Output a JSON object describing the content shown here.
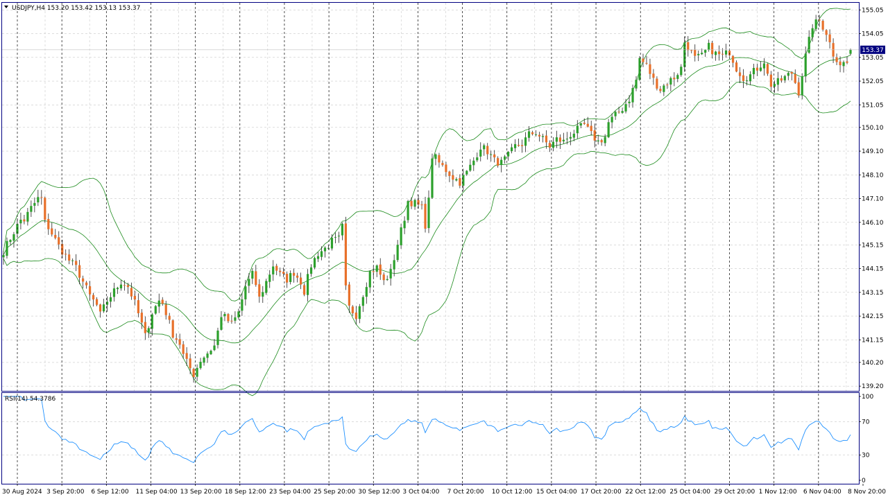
{
  "header": {
    "symbol_line": "USDJPY,H4  153.20 153.42 153.13 153.37",
    "dropdown_icon": "triangle-down-icon"
  },
  "price_tag": "153.37",
  "rsi_label": "RSI(14) 54.3786",
  "colors": {
    "background": "#ffffff",
    "frame": "#000080",
    "grid": "#c8c8c8",
    "bull": "#2ca02c",
    "bear": "#e8702a",
    "bollinger": "#1a8a1a",
    "rsi_line": "#1e90ff",
    "period_sep": "#000000",
    "price_tag_bg": "#000080",
    "price_tag_text": "#ffffff"
  },
  "chart_data": [
    {
      "type": "candlestick",
      "title": "USDJPY,H4",
      "last": {
        "open": 153.2,
        "high": 153.42,
        "low": 153.13,
        "close": 153.37
      },
      "ylim": [
        139.0,
        155.35
      ],
      "y_ticks": [
        "155.05",
        "154.05",
        "153.05",
        "152.05",
        "151.05",
        "150.10",
        "149.10",
        "148.10",
        "147.10",
        "146.10",
        "145.15",
        "144.15",
        "143.15",
        "142.15",
        "141.15",
        "140.20",
        "139.20"
      ],
      "x_ticks": [
        "30 Aug 2024",
        "3 Sep 20:00",
        "6 Sep 12:00",
        "11 Sep 04:00",
        "13 Sep 20:00",
        "18 Sep 12:00",
        "23 Sep 04:00",
        "25 Sep 20:00",
        "30 Sep 12:00",
        "3 Oct 04:00",
        "7 Oct 20:00",
        "10 Oct 12:00",
        "15 Oct 04:00",
        "17 Oct 20:00",
        "22 Oct 12:00",
        "25 Oct 04:00",
        "29 Oct 20:00",
        "1 Nov 12:00",
        "6 Nov 04:00",
        "8 Nov 20:00"
      ],
      "close_path": [
        [
          0,
          144.9
        ],
        [
          3,
          145.7
        ],
        [
          5,
          146.2
        ],
        [
          6,
          146.2
        ],
        [
          8,
          146.7
        ],
        [
          10,
          147.1
        ],
        [
          11,
          147.1
        ],
        [
          12,
          146.1
        ],
        [
          13,
          145.9
        ],
        [
          16,
          145.1
        ],
        [
          19,
          144.5
        ],
        [
          21,
          144.2
        ],
        [
          23,
          143.6
        ],
        [
          25,
          143.0
        ],
        [
          27,
          142.6
        ],
        [
          28,
          142.2
        ],
        [
          30,
          142.8
        ],
        [
          32,
          143.2
        ],
        [
          34,
          143.6
        ],
        [
          36,
          143.4
        ],
        [
          38,
          142.7
        ],
        [
          40,
          141.8
        ],
        [
          41,
          141.3
        ],
        [
          43,
          142.3
        ],
        [
          45,
          142.8
        ],
        [
          46,
          142.7
        ],
        [
          47,
          142.3
        ],
        [
          49,
          141.4
        ],
        [
          51,
          141.0
        ],
        [
          52,
          140.5
        ],
        [
          53,
          140.2
        ],
        [
          55,
          139.7
        ],
        [
          57,
          140.3
        ],
        [
          59,
          140.6
        ],
        [
          61,
          140.9
        ],
        [
          62,
          141.5
        ],
        [
          63,
          142.2
        ],
        [
          64,
          142.1
        ],
        [
          66,
          141.8
        ],
        [
          68,
          142.3
        ],
        [
          70,
          143.4
        ],
        [
          72,
          143.9
        ],
        [
          73,
          143.5
        ],
        [
          74,
          142.9
        ],
        [
          76,
          143.6
        ],
        [
          78,
          144.3
        ],
        [
          80,
          143.9
        ],
        [
          82,
          143.7
        ],
        [
          84,
          144.0
        ],
        [
          86,
          143.6
        ],
        [
          87,
          143.2
        ],
        [
          89,
          144.3
        ],
        [
          91,
          144.8
        ],
        [
          93,
          145.0
        ],
        [
          95,
          145.3
        ],
        [
          97,
          145.4
        ],
        [
          98,
          145.9
        ],
        [
          99,
          143.3
        ],
        [
          100,
          142.5
        ],
        [
          102,
          142.2
        ],
        [
          104,
          143.1
        ],
        [
          106,
          144.0
        ],
        [
          108,
          144.2
        ],
        [
          110,
          143.6
        ],
        [
          112,
          144.0
        ],
        [
          114,
          145.2
        ],
        [
          116,
          146.3
        ],
        [
          117,
          147.0
        ],
        [
          119,
          146.9
        ],
        [
          121,
          146.7
        ],
        [
          122,
          146.0
        ],
        [
          123,
          147.0
        ],
        [
          124,
          148.9
        ],
        [
          125,
          148.8
        ],
        [
          126,
          148.6
        ],
        [
          128,
          148.3
        ],
        [
          130,
          148.0
        ],
        [
          132,
          147.8
        ],
        [
          134,
          148.2
        ],
        [
          136,
          148.7
        ],
        [
          138,
          149.3
        ],
        [
          140,
          149.1
        ],
        [
          142,
          148.7
        ],
        [
          144,
          148.6
        ],
        [
          146,
          148.9
        ],
        [
          148,
          149.3
        ],
        [
          150,
          149.4
        ],
        [
          152,
          149.8
        ],
        [
          154,
          149.9
        ],
        [
          156,
          149.6
        ],
        [
          158,
          149.3
        ],
        [
          160,
          149.6
        ],
        [
          162,
          149.5
        ],
        [
          164,
          149.8
        ],
        [
          166,
          150.0
        ],
        [
          168,
          150.2
        ],
        [
          170,
          149.8
        ],
        [
          172,
          149.5
        ],
        [
          174,
          149.7
        ],
        [
          175,
          150.3
        ],
        [
          177,
          150.6
        ],
        [
          179,
          150.9
        ],
        [
          181,
          151.3
        ],
        [
          183,
          152.1
        ],
        [
          184,
          153.0
        ],
        [
          186,
          152.7
        ],
        [
          188,
          152.1
        ],
        [
          190,
          151.7
        ],
        [
          192,
          152.0
        ],
        [
          194,
          152.2
        ],
        [
          196,
          152.6
        ],
        [
          197,
          153.7
        ],
        [
          198,
          153.5
        ],
        [
          200,
          153.0
        ],
        [
          202,
          153.1
        ],
        [
          204,
          153.5
        ],
        [
          206,
          153.2
        ],
        [
          208,
          153.1
        ],
        [
          210,
          153.3
        ],
        [
          212,
          152.6
        ],
        [
          214,
          152.2
        ],
        [
          216,
          152.3
        ],
        [
          218,
          152.6
        ],
        [
          220,
          152.9
        ],
        [
          221,
          152.3
        ],
        [
          222,
          151.9
        ],
        [
          224,
          152.0
        ],
        [
          226,
          152.2
        ],
        [
          228,
          152.4
        ],
        [
          230,
          151.6
        ],
        [
          232,
          153.1
        ],
        [
          234,
          154.4
        ],
        [
          236,
          154.6
        ],
        [
          238,
          154.1
        ],
        [
          240,
          153.2
        ],
        [
          242,
          152.8
        ],
        [
          244,
          152.8
        ],
        [
          245,
          153.37
        ]
      ],
      "overlay": "Bollinger Bands"
    },
    {
      "type": "line",
      "title": "RSI(14) 54.3786",
      "ylim": [
        0,
        100
      ],
      "y_ticks": [
        100,
        70,
        30,
        0
      ],
      "levels": [
        70,
        30
      ],
      "last_value": 54.3786
    }
  ]
}
